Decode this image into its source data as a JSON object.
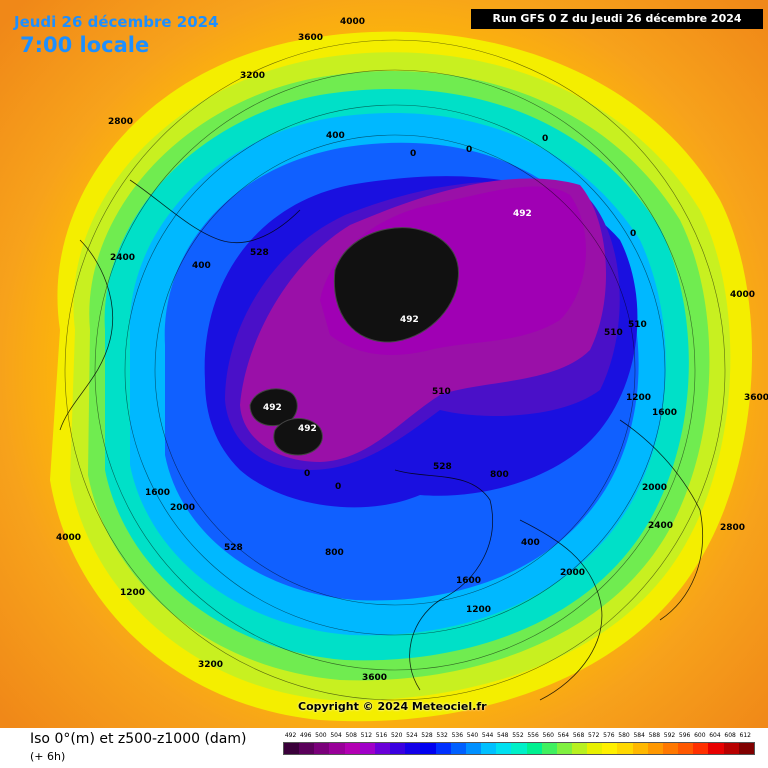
{
  "header": {
    "date": "Jeudi 26 décembre 2024",
    "local_time": "7:00 locale",
    "run": "Run GFS 0 Z du Jeudi 26 décembre 2024"
  },
  "copyright": "Copyright © 2024 Meteociel.fr",
  "footer": {
    "title": "Iso 0°(m) et z500-z1000 (dam)",
    "subtitle": "(+ 6h)"
  },
  "legend": {
    "values": [
      "492",
      "496",
      "500",
      "504",
      "508",
      "512",
      "516",
      "520",
      "524",
      "528",
      "532",
      "536",
      "540",
      "544",
      "548",
      "552",
      "556",
      "560",
      "564",
      "568",
      "572",
      "576",
      "580",
      "584",
      "588",
      "592",
      "596",
      "600",
      "604",
      "608",
      "612"
    ],
    "colors": [
      "#3a003a",
      "#5a005a",
      "#7a007a",
      "#990099",
      "#b300b3",
      "#a000c8",
      "#6a00d8",
      "#3a00e0",
      "#1400e8",
      "#0000f0",
      "#0030ff",
      "#0060ff",
      "#0090ff",
      "#00c0ff",
      "#00e0f0",
      "#00f0c8",
      "#00f090",
      "#40f060",
      "#80f040",
      "#b8f020",
      "#e8f000",
      "#fff000",
      "#ffd800",
      "#ffb800",
      "#ff9800",
      "#ff7800",
      "#ff5800",
      "#ff3000",
      "#e80000",
      "#b80000",
      "#800000"
    ]
  },
  "map": {
    "thickness_labels": [
      "492",
      "492",
      "492",
      "492",
      "510",
      "510",
      "510",
      "528",
      "528",
      "528"
    ],
    "iso_labels": [
      "4000",
      "3600",
      "3200",
      "2800",
      "2400",
      "2000",
      "1600",
      "1200",
      "800",
      "400",
      "0",
      "0",
      "0",
      "0",
      "400",
      "800",
      "1200",
      "1600",
      "2000",
      "2400",
      "2800",
      "3200",
      "3600",
      "4000",
      "2000",
      "1600",
      "1200",
      "400",
      "0",
      "0",
      "4000",
      "3600"
    ]
  }
}
